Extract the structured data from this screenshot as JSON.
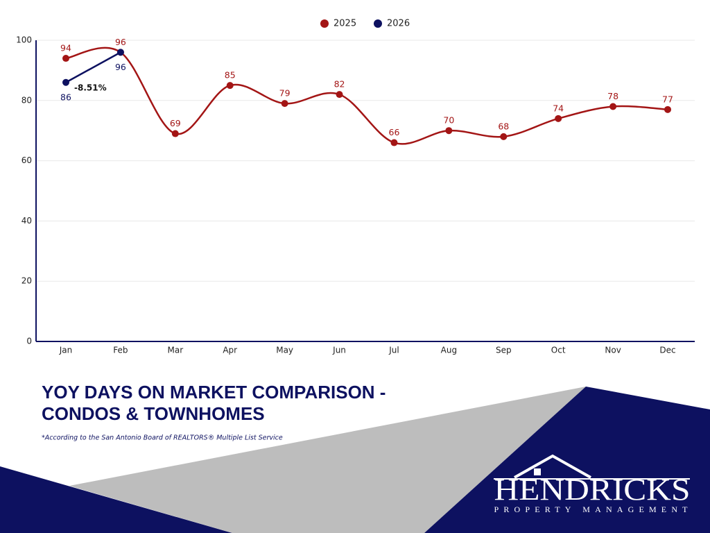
{
  "chart_data": {
    "type": "line",
    "title": [
      "YOY DAYS ON MARKET COMPARISON -",
      "CONDOS & TOWNHOMES"
    ],
    "footnote": "*According to the San Antonio Board of REALTORS® Multiple List Service",
    "annotation": "-8.51%",
    "categories": [
      "Jan",
      "Feb",
      "Mar",
      "Apr",
      "May",
      "Jun",
      "Jul",
      "Aug",
      "Sep",
      "Oct",
      "Nov",
      "Dec"
    ],
    "series": [
      {
        "name": "2025",
        "color": "#a31515",
        "smooth": true,
        "values": [
          94,
          96,
          69,
          85,
          79,
          82,
          66,
          70,
          68,
          74,
          78,
          77
        ]
      },
      {
        "name": "2026",
        "color": "#0d1160",
        "smooth": false,
        "values": [
          86,
          96,
          null,
          null,
          null,
          null,
          null,
          null,
          null,
          null,
          null,
          null
        ]
      }
    ],
    "ylim": [
      0,
      100
    ],
    "yticks": [
      0,
      20,
      40,
      60,
      80,
      100
    ],
    "grid": true,
    "legend": "top"
  },
  "logo": {
    "name": "HENDRICKS",
    "tagline": "PROPERTY MANAGEMENT"
  }
}
